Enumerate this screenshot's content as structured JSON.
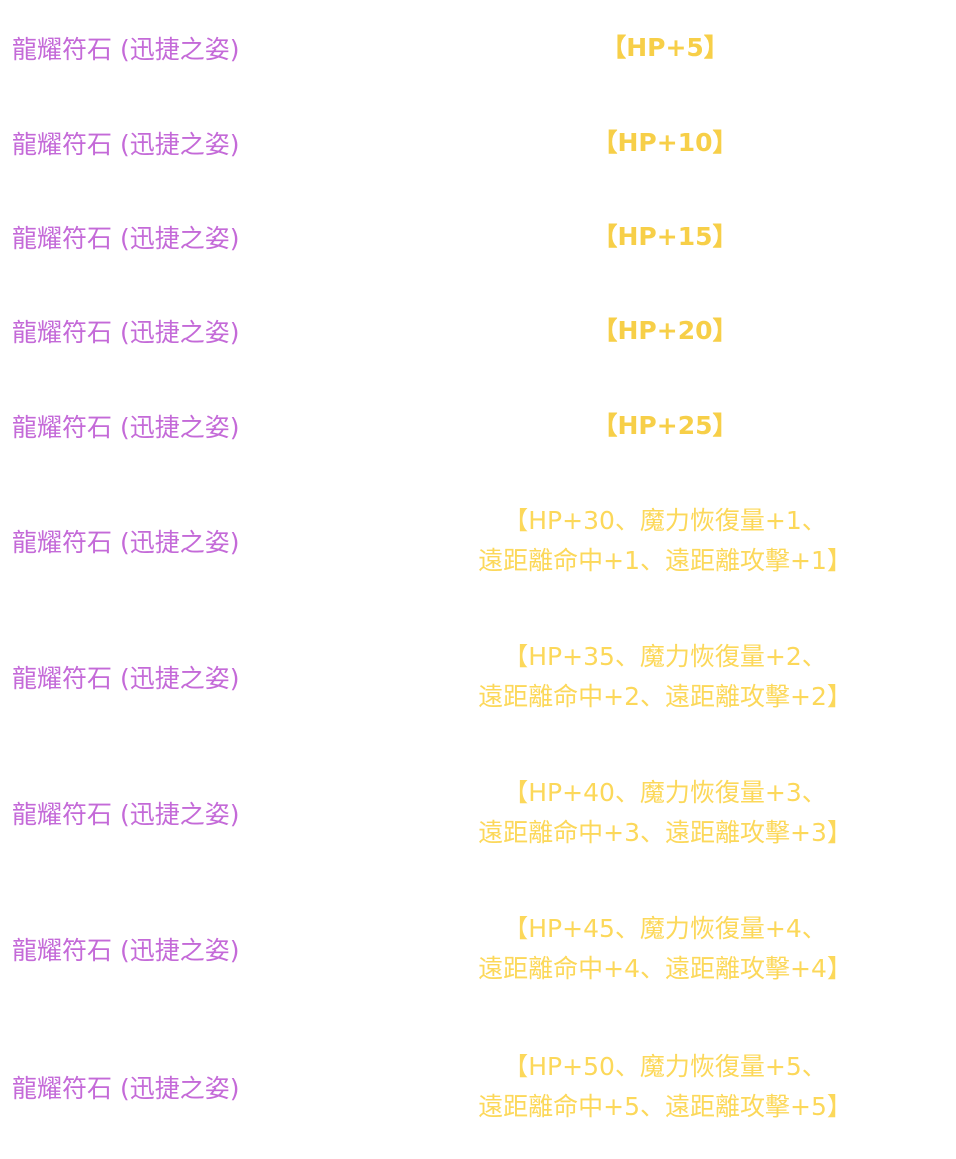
{
  "table": {
    "rows": [
      {
        "name": "龍耀符石 (迅捷之姿)",
        "effect": [
          "【HP+5】"
        ]
      },
      {
        "name": "龍耀符石 (迅捷之姿)",
        "effect": [
          "【HP+10】"
        ]
      },
      {
        "name": "龍耀符石 (迅捷之姿)",
        "effect": [
          "【HP+15】"
        ]
      },
      {
        "name": "龍耀符石 (迅捷之姿)",
        "effect": [
          "【HP+20】"
        ]
      },
      {
        "name": "龍耀符石 (迅捷之姿)",
        "effect": [
          "【HP+25】"
        ]
      },
      {
        "name": "龍耀符石 (迅捷之姿)",
        "effect": [
          "【HP+30、魔力恢復量+1、",
          "遠距離命中+1、遠距離攻擊+1】"
        ]
      },
      {
        "name": "龍耀符石 (迅捷之姿)",
        "effect": [
          "【HP+35、魔力恢復量+2、",
          "遠距離命中+2、遠距離攻擊+2】"
        ]
      },
      {
        "name": "龍耀符石 (迅捷之姿)",
        "effect": [
          "【HP+40、魔力恢復量+3、",
          "遠距離命中+3、遠距離攻擊+3】"
        ]
      },
      {
        "name": "龍耀符石 (迅捷之姿)",
        "effect": [
          "【HP+45、魔力恢復量+4、",
          "遠距離命中+4、遠距離攻擊+4】"
        ]
      },
      {
        "name": "龍耀符石 (迅捷之姿)",
        "effect": [
          "【HP+50、魔力恢復量+5、",
          "遠距離命中+5、遠距離攻擊+5】"
        ]
      }
    ]
  }
}
